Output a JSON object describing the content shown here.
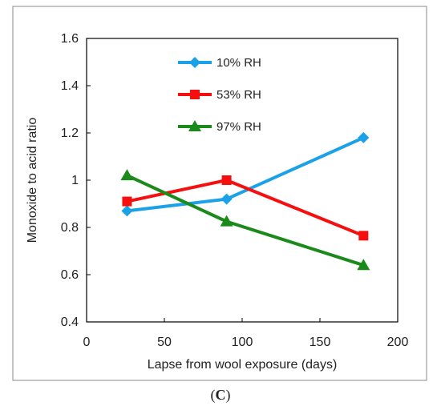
{
  "chart_data": {
    "type": "line",
    "xlabel": "Lapse from wool exposure (days)",
    "ylabel": "Monoxide to acid ratio",
    "xlim": [
      0,
      200
    ],
    "ylim": [
      0.4,
      1.6
    ],
    "xticks": [
      0,
      50,
      100,
      150,
      200
    ],
    "yticks": [
      0.4,
      0.6,
      0.8,
      1.0,
      1.2,
      1.4,
      1.6
    ],
    "ytick_labels": [
      "0.4",
      "0.6",
      "0.8",
      "1",
      "1.2",
      "1.4",
      "1.6"
    ],
    "grid": false,
    "legend_position": "top-center",
    "series": [
      {
        "name": "10% RH",
        "color": "#1BA1E8",
        "marker": "diamond",
        "x": [
          26,
          90,
          178
        ],
        "y": [
          0.87,
          0.92,
          1.18
        ]
      },
      {
        "name": "53% RH",
        "color": "#F50F0F",
        "marker": "square",
        "x": [
          26,
          90,
          178
        ],
        "y": [
          0.91,
          1.0,
          0.765
        ]
      },
      {
        "name": "97% RH",
        "color": "#1A8A1A",
        "marker": "triangle",
        "x": [
          26,
          90,
          178
        ],
        "y": [
          1.02,
          0.825,
          0.64
        ]
      }
    ]
  },
  "caption": {
    "open": "(",
    "letter": "C",
    "close": ")"
  }
}
